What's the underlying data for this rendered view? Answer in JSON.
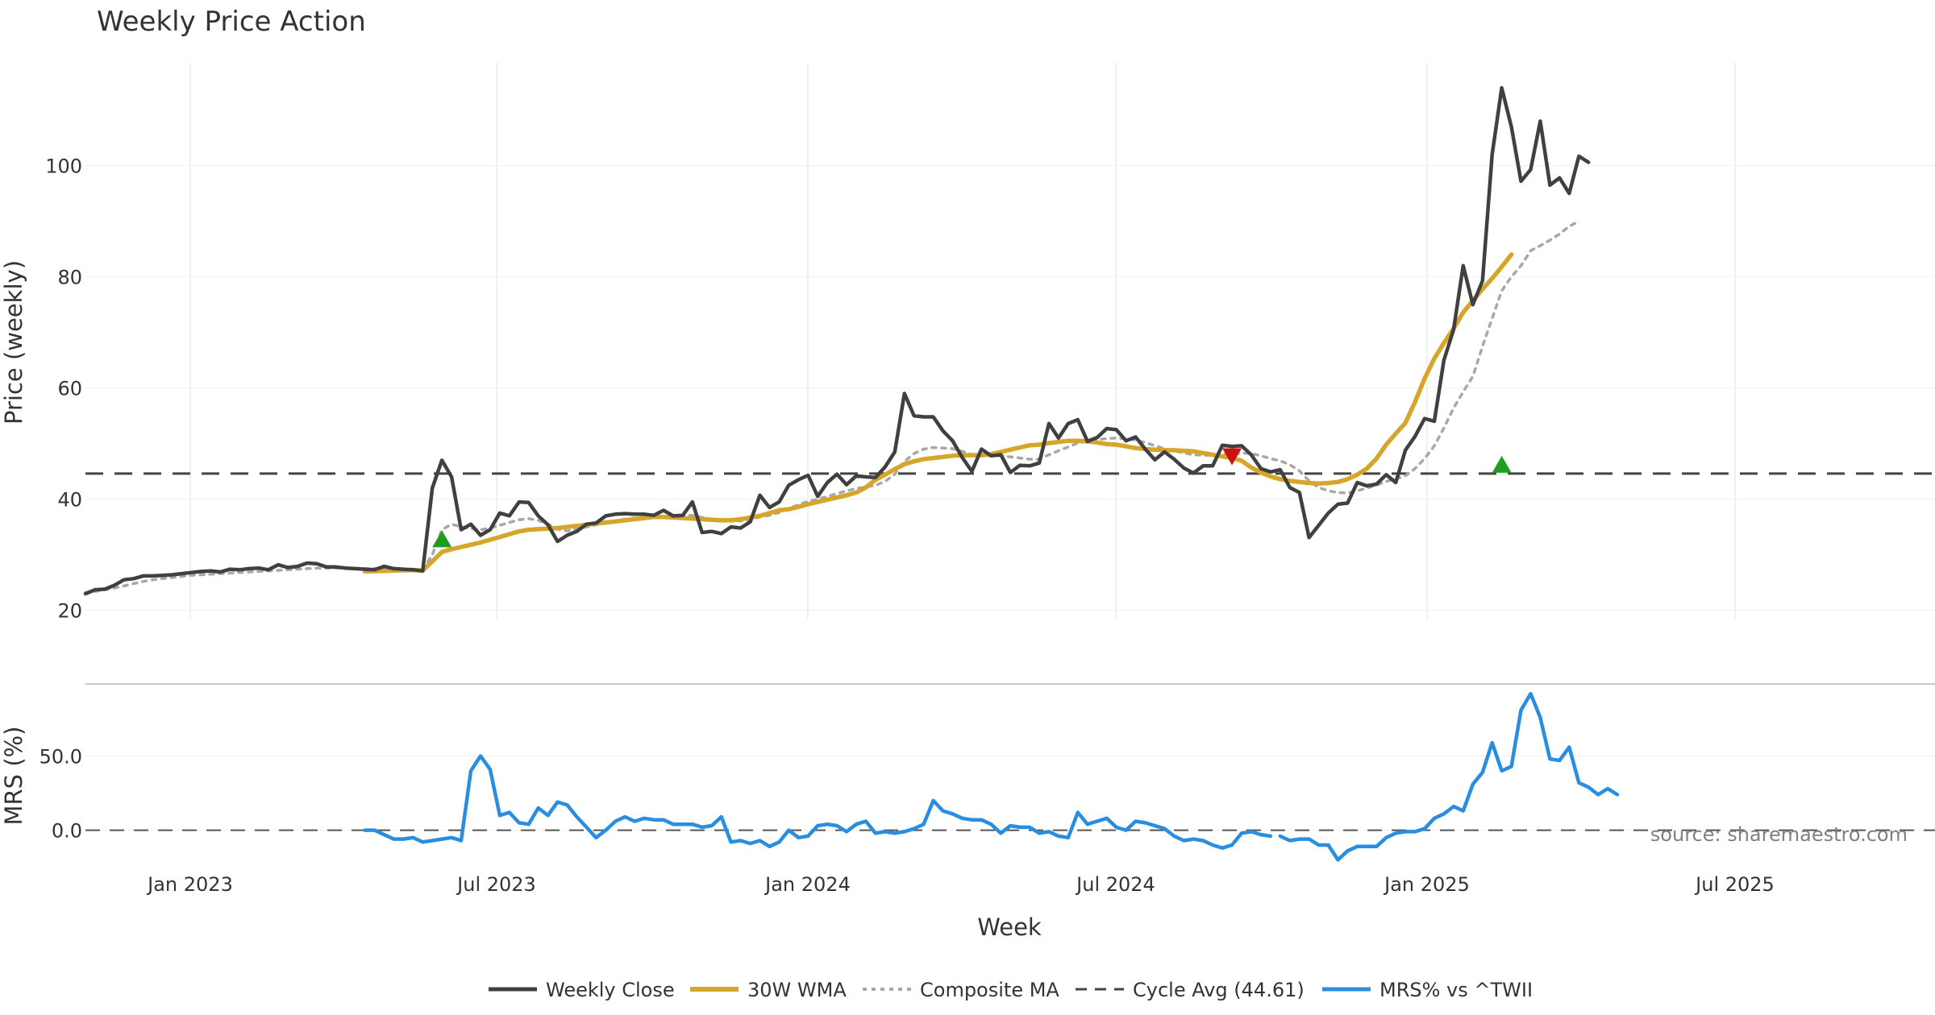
{
  "chart_data": {
    "type": "line",
    "title": "Weekly Price Action",
    "source": "source: sharemaestro.com",
    "xlabel": "Week",
    "x_ticks": [
      "Jan 2023",
      "Jul 2023",
      "Jan 2024",
      "Jul 2024",
      "Jan 2025",
      "Jul 2025"
    ],
    "price_panel": {
      "ylabel": "Price (weekly)",
      "ylim": [
        18.5,
        118.5
      ],
      "y_ticks": [
        "20",
        "40",
        "60",
        "80",
        "100"
      ],
      "grid": true
    },
    "mrs_panel": {
      "ylabel": "MRS (%)",
      "ylim": [
        -35,
        97
      ],
      "y_ticks": [
        "0.0",
        "50.0"
      ],
      "grid": true
    },
    "cycle_avg": 44.61,
    "series": [
      {
        "name": "Weekly Close",
        "color": "#404040",
        "values": [
          23,
          23.7,
          23.8,
          24.5,
          25.5,
          25.7,
          26.2,
          26.2,
          26.3,
          26.4,
          26.6,
          26.8,
          27,
          27.1,
          26.9,
          27.4,
          27.3,
          27.5,
          27.6,
          27.3,
          28.2,
          27.7,
          27.9,
          28.5,
          28.4,
          27.8,
          27.8,
          27.6,
          27.5,
          27.4,
          27.3,
          27.9,
          27.5,
          27.4,
          27.3,
          27.1,
          42,
          47,
          44,
          34.5,
          35.5,
          33.5,
          34.5,
          37.5,
          37,
          39.5,
          39.4,
          37,
          35.4,
          32.4,
          33.5,
          34.2,
          35.5,
          35.7,
          37,
          37.3,
          37.4,
          37.3,
          37.3,
          37.1,
          38,
          37,
          37.1,
          39.5,
          34,
          34.2,
          33.8,
          35,
          34.8,
          35.9,
          40.7,
          38.5,
          39.5,
          42.5,
          43.5,
          44.3,
          40.5,
          43,
          44.5,
          42.6,
          44.2,
          44,
          43.9,
          45.8,
          48.5,
          59,
          55,
          54.8,
          54.8,
          52.3,
          50.5,
          47.5,
          45,
          49,
          47.8,
          48,
          44.8,
          46.1,
          46,
          46.5,
          53.6,
          51,
          53.6,
          54.3,
          50.4,
          51.1,
          52.7,
          52.5,
          50.5,
          51.2,
          49,
          47.1,
          48.5,
          47.2,
          45.6,
          44.7,
          46,
          46,
          49.7,
          49.5,
          49.6,
          48,
          45.5,
          44.9,
          45.3,
          42.1,
          41.2,
          33.1,
          35.3,
          37.5,
          39.1,
          39.3,
          43,
          42.4,
          42.7,
          44.4,
          43,
          48.8,
          51.3,
          54.5,
          54,
          65,
          70.5,
          82,
          75,
          79.3,
          102,
          114,
          107,
          97.2,
          99.3,
          108,
          96.5,
          97.8,
          95,
          101.7,
          100.6
        ]
      },
      {
        "name": "30W WMA",
        "color": "#d6a62a",
        "start_index": 29,
        "values": [
          27,
          27.05,
          27.1,
          27.15,
          27.2,
          27.25,
          27.15,
          28.8,
          30.5,
          31,
          31.4,
          31.8,
          32.2,
          32.7,
          33.2,
          33.7,
          34.2,
          34.5,
          34.6,
          34.7,
          34.8,
          35,
          35.2,
          35.4,
          35.6,
          35.8,
          36,
          36.2,
          36.4,
          36.6,
          36.8,
          36.8,
          36.7,
          36.6,
          36.5,
          36.4,
          36.3,
          36.2,
          36.2,
          36.4,
          36.7,
          37,
          37.5,
          38,
          38.2,
          38.6,
          39.1,
          39.5,
          39.9,
          40.3,
          40.7,
          41.2,
          42.1,
          43.5,
          44.4,
          45.4,
          46.3,
          46.8,
          47.2,
          47.4,
          47.6,
          47.8,
          47.9,
          47.9,
          47.9,
          48.1,
          48.5,
          48.9,
          49.3,
          49.7,
          49.8,
          50.1,
          50.3,
          50.5,
          50.5,
          50.4,
          50.2,
          49.9,
          49.8,
          49.5,
          49.2,
          49,
          48.9,
          48.8,
          48.8,
          48.7,
          48.6,
          48.3,
          48,
          47.7,
          47.4,
          46.9,
          45.7,
          44.8,
          44.1,
          43.6,
          43.3,
          43.1,
          42.9,
          42.8,
          42.9,
          43.1,
          43.6,
          44.4,
          45.5,
          47.3,
          49.8,
          51.8,
          53.7,
          57.5,
          61.7,
          65.3,
          68.1,
          70.7,
          73.6,
          75.7,
          77.8,
          79.7,
          81.8,
          84
        ]
      },
      {
        "name": "Composite MA",
        "color": "#a8a8a8",
        "values": [
          23.2,
          23.4,
          23.7,
          24,
          24.4,
          24.8,
          25.2,
          25.5,
          25.7,
          25.9,
          26.1,
          26.3,
          26.4,
          26.5,
          26.6,
          26.7,
          26.8,
          26.9,
          27,
          27.1,
          27.2,
          27.3,
          27.4,
          27.5,
          27.6,
          27.6,
          27.6,
          27.6,
          27.6,
          27.5,
          27.5,
          27.5,
          27.4,
          27.4,
          27.3,
          27.3,
          30,
          34.5,
          35.5,
          35,
          34.7,
          34.5,
          34.8,
          35.3,
          35.8,
          36.3,
          36.5,
          36.2,
          35.5,
          34.6,
          34.3,
          34.6,
          35,
          35.4,
          35.8,
          36.1,
          36.4,
          36.6,
          36.7,
          36.8,
          36.9,
          36.9,
          37,
          37.1,
          36.7,
          36.4,
          36.2,
          36.1,
          36.1,
          36.3,
          36.8,
          37.1,
          37.6,
          38.3,
          39,
          39.6,
          40,
          40.5,
          41,
          41.5,
          41.9,
          42.2,
          42.5,
          43.2,
          44.5,
          46.8,
          48.2,
          49,
          49.3,
          49.2,
          49.1,
          48.6,
          48,
          47.9,
          47.8,
          47.8,
          47.6,
          47.4,
          47.2,
          47.2,
          48,
          48.7,
          49.4,
          50.1,
          50.4,
          50.7,
          50.9,
          51,
          50.9,
          50.6,
          50.2,
          49.6,
          49.1,
          48.7,
          48.3,
          48,
          47.9,
          47.9,
          48.1,
          48.2,
          48.3,
          48.2,
          47.8,
          47.3,
          46.9,
          46.2,
          45.1,
          43.3,
          42.1,
          41.5,
          41.2,
          41.1,
          41.5,
          42,
          42.5,
          43.2,
          43.6,
          44.2,
          45.5,
          47.3,
          49.6,
          52.8,
          56.4,
          59.3,
          62.1,
          67.5,
          72.5,
          77.5,
          80,
          82,
          84.7,
          85.6,
          86.6,
          87.7,
          89.1,
          90
        ]
      },
      {
        "name": "MRS% vs ^TWII",
        "color": "#2a8ee0",
        "start_index": 29,
        "gaps": [
          [
            123,
            124
          ]
        ],
        "values": [
          0,
          0,
          -3,
          -6,
          -6,
          -5,
          -8,
          -7,
          -6,
          -5,
          -7,
          40,
          50,
          41,
          10,
          12,
          5,
          4,
          15,
          10,
          19,
          17,
          9,
          2,
          -5,
          0,
          6,
          9,
          6,
          8,
          7,
          7,
          4,
          4,
          4,
          2,
          3,
          9,
          -8,
          -7,
          -9,
          -7,
          -11,
          -8,
          0,
          -5,
          -4,
          3,
          4,
          3,
          -1,
          4,
          6,
          -2,
          -1,
          -2,
          -1,
          1,
          4,
          20,
          13,
          11,
          8,
          7,
          7,
          4,
          -2,
          3,
          2,
          2,
          -2,
          -1,
          -4,
          -5,
          12,
          4,
          6,
          8,
          2,
          0,
          6,
          5,
          3,
          1,
          -4,
          -7,
          -6,
          -7,
          -10,
          -12,
          -10,
          -2,
          -1,
          -3,
          -4,
          -4,
          -7,
          -6,
          -6,
          -10,
          -10,
          -20,
          -14,
          -11,
          -11,
          -11,
          -5,
          -2,
          -1,
          -1,
          1,
          8,
          11,
          16,
          13,
          31,
          39,
          59,
          40,
          43,
          81,
          92,
          76,
          48,
          47,
          56,
          32,
          29,
          24,
          28,
          24
        ]
      }
    ],
    "markers": [
      {
        "type": "buy",
        "shape": "up-triangle",
        "color": "#1f9d1f",
        "index": 37,
        "value": 32.8
      },
      {
        "type": "sell",
        "shape": "down-triangle",
        "color": "#cc1111",
        "index": 119,
        "value": 47.7
      },
      {
        "type": "buy",
        "shape": "up-triangle",
        "color": "#1f9d1f",
        "index": 147,
        "value": 46.2
      }
    ],
    "legend": {
      "placement": "bottom-center",
      "entries": [
        "Weekly Close",
        "30W WMA",
        "Composite MA",
        "Cycle Avg (44.61)",
        "MRS% vs ^TWII"
      ]
    }
  }
}
